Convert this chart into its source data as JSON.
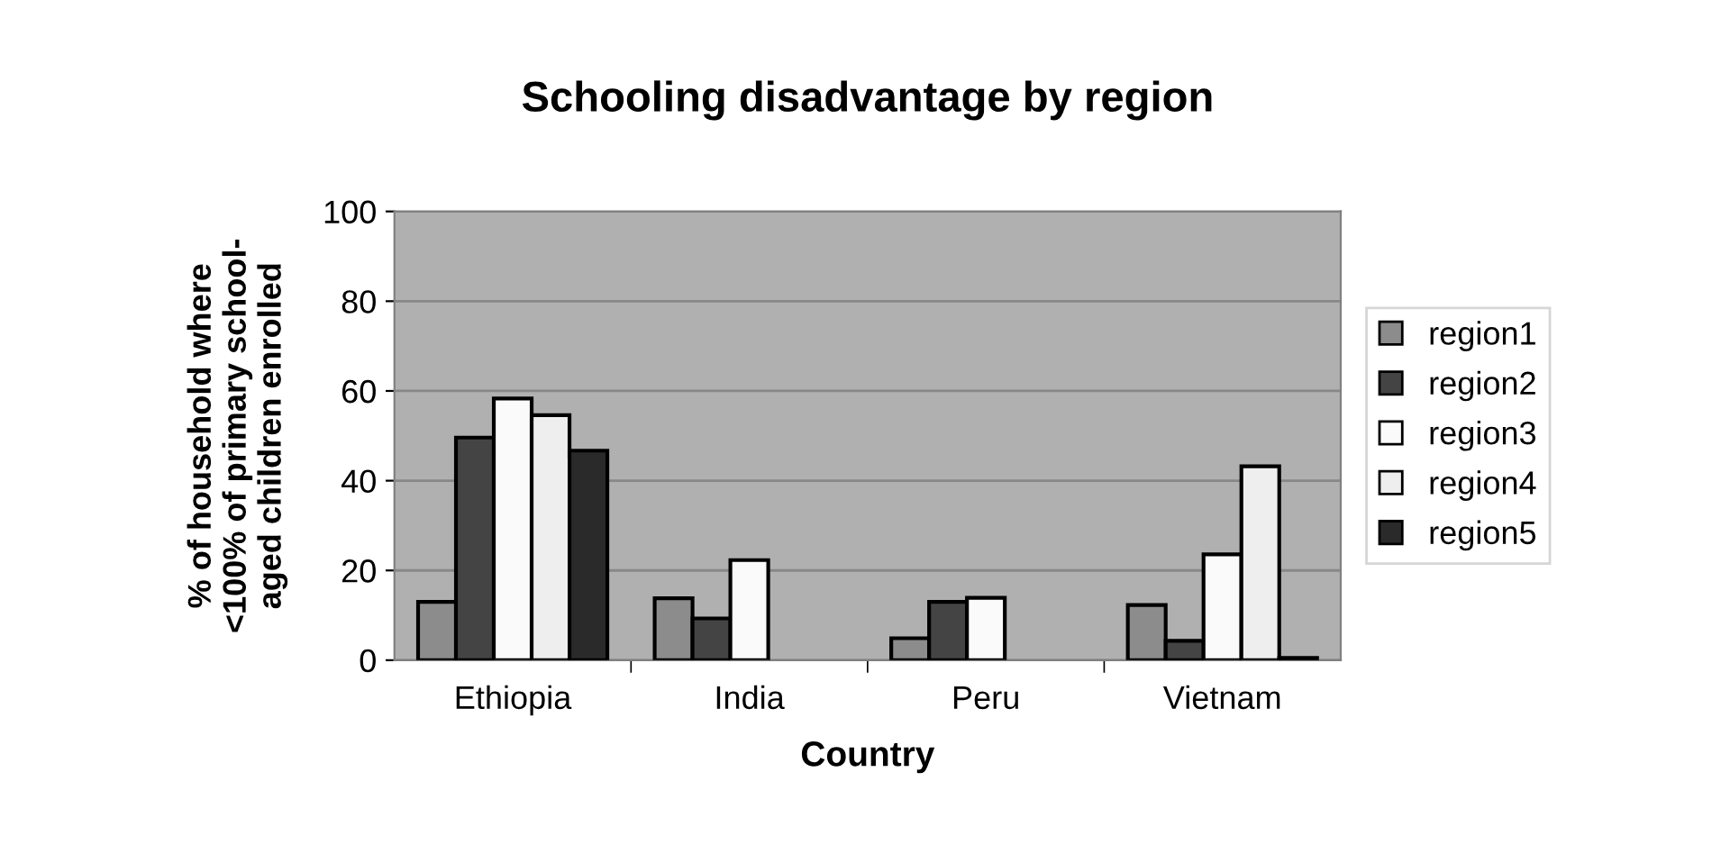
{
  "chart_data": {
    "type": "bar",
    "title": "Schooling disadvantage by region",
    "xlabel": "Country",
    "ylabel": "% of household where\n<100% of primary school-\naged children enrolled",
    "categories": [
      "Ethiopia",
      "India",
      "Peru",
      "Vietnam"
    ],
    "series": [
      {
        "name": "region1",
        "color": "#8c8c8c",
        "values": [
          13,
          13.8,
          4.9,
          12.3
        ]
      },
      {
        "name": "region2",
        "color": "#444444",
        "values": [
          49.6,
          9.3,
          13,
          4.3
        ]
      },
      {
        "name": "region3",
        "color": "#fafafa",
        "values": [
          58.3,
          22.3,
          13.9,
          23.6
        ]
      },
      {
        "name": "region4",
        "color": "#eeeeee",
        "values": [
          54.6,
          null,
          null,
          43.2
        ]
      },
      {
        "name": "region5",
        "color": "#2a2a2a",
        "values": [
          46.7,
          null,
          null,
          0.5
        ]
      }
    ],
    "ylim": [
      0,
      100
    ],
    "yticks": [
      0,
      20,
      40,
      60,
      80,
      100
    ],
    "grid": "y",
    "legend": "right"
  }
}
